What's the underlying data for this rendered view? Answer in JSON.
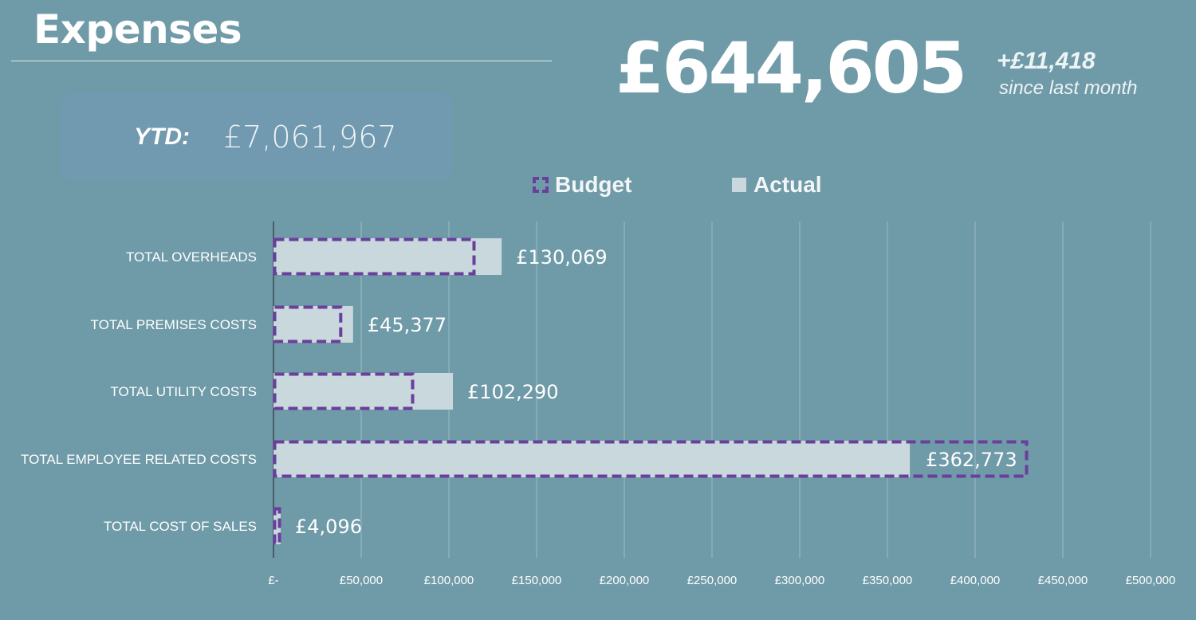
{
  "header": {
    "title": "Expenses",
    "total": "£644,605",
    "delta": "+£11,418",
    "delta_caption": "since last month"
  },
  "ytd": {
    "label": "YTD:",
    "value": "£7,061,967"
  },
  "colors": {
    "background": "#6f9aa8",
    "actual": "#c9d8dd",
    "budget_outline": "#6a3f9c",
    "grid": "#9dbcc6"
  },
  "chart_data": {
    "type": "bar",
    "orientation": "horizontal",
    "categories": [
      "TOTAL OVERHEADS",
      "TOTAL PREMISES COSTS",
      "TOTAL UTILITY COSTS",
      "TOTAL EMPLOYEE RELATED COSTS",
      "TOTAL COST OF SALES"
    ],
    "series": [
      {
        "name": "Budget",
        "style": "dashed-outline",
        "values": [
          115000,
          39000,
          80000,
          430000,
          4000
        ]
      },
      {
        "name": "Actual",
        "style": "filled",
        "values": [
          130069,
          45377,
          102290,
          362773,
          4096
        ]
      }
    ],
    "data_labels": [
      "£130,069",
      "£45,377",
      "£102,290",
      "£362,773",
      "£4,096"
    ],
    "xlim": [
      0,
      500000
    ],
    "x_ticks": [
      0,
      50000,
      100000,
      150000,
      200000,
      250000,
      300000,
      350000,
      400000,
      450000,
      500000
    ],
    "x_tick_labels": [
      "£-",
      "£50,000",
      "£100,000",
      "£150,000",
      "£200,000",
      "£250,000",
      "£300,000",
      "£350,000",
      "£400,000",
      "£450,000",
      "£500,000"
    ],
    "grid": true,
    "legend_position": "top"
  }
}
